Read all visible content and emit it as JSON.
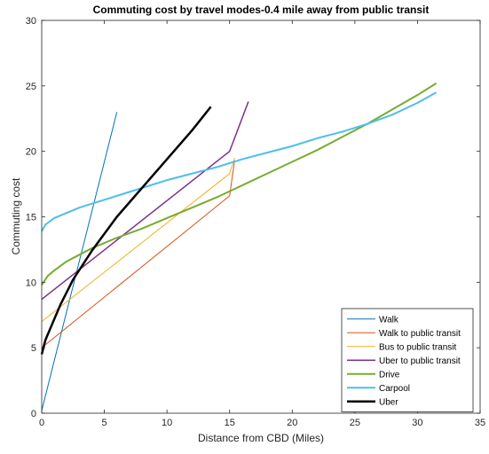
{
  "chart_data": {
    "type": "line",
    "title": "Commuting cost by travel modes-0.4 mile away from public transit",
    "xlabel": "Distance from CBD (Miles)",
    "ylabel": "Commuting cost",
    "xlim": [
      0,
      35
    ],
    "ylim": [
      0,
      30
    ],
    "xticks": [
      0,
      5,
      10,
      15,
      20,
      25,
      30,
      35
    ],
    "yticks": [
      0,
      5,
      10,
      15,
      20,
      25,
      30
    ],
    "grid": false,
    "legend_position": "bottom-right",
    "series": [
      {
        "name": "Walk",
        "color": "#0072BD",
        "width": 1,
        "x": [
          0,
          6
        ],
        "y": [
          0.2,
          23
        ]
      },
      {
        "name": "Walk to public transit",
        "color": "#D95319",
        "width": 1,
        "x": [
          0,
          15.0,
          15.4
        ],
        "y": [
          5.0,
          16.6,
          19.3
        ]
      },
      {
        "name": "Bus to public transit",
        "color": "#EDB120",
        "width": 1,
        "x": [
          0,
          15.0,
          15.4
        ],
        "y": [
          7.0,
          18.3,
          19.5
        ]
      },
      {
        "name": "Uber to public transit",
        "color": "#7E2F8E",
        "width": 1.5,
        "x": [
          0,
          15.0,
          16.5
        ],
        "y": [
          8.7,
          20.0,
          23.8
        ]
      },
      {
        "name": "Drive",
        "color": "#77AC30",
        "width": 2,
        "x": [
          0,
          0.5,
          1,
          2,
          3,
          4,
          6,
          8,
          10,
          12,
          14,
          16,
          18,
          20,
          22,
          24,
          26,
          28,
          30,
          31.5
        ],
        "y": [
          9.8,
          10.5,
          10.9,
          11.6,
          12.1,
          12.6,
          13.4,
          14.1,
          14.9,
          15.7,
          16.5,
          17.4,
          18.3,
          19.2,
          20.1,
          21.1,
          22.1,
          23.2,
          24.3,
          25.2
        ]
      },
      {
        "name": "Carpool",
        "color": "#4DBEEE",
        "width": 2,
        "x": [
          0,
          0.3,
          1,
          2,
          3,
          4,
          6,
          8,
          10,
          12,
          14,
          16,
          18,
          20,
          22,
          24,
          26,
          28,
          30,
          31.5
        ],
        "y": [
          13.9,
          14.4,
          14.9,
          15.3,
          15.7,
          16.0,
          16.6,
          17.2,
          17.8,
          18.3,
          18.8,
          19.4,
          19.9,
          20.4,
          21.0,
          21.5,
          22.1,
          22.8,
          23.7,
          24.5
        ]
      },
      {
        "name": "Uber",
        "color": "#000000",
        "width": 2.5,
        "x": [
          0,
          0.3,
          0.7,
          1.5,
          2.5,
          4,
          6,
          8,
          10,
          12,
          13.5
        ],
        "y": [
          4.5,
          5.6,
          6.5,
          8.3,
          10.2,
          12.4,
          15.0,
          17.2,
          19.4,
          21.6,
          23.4
        ]
      }
    ]
  }
}
